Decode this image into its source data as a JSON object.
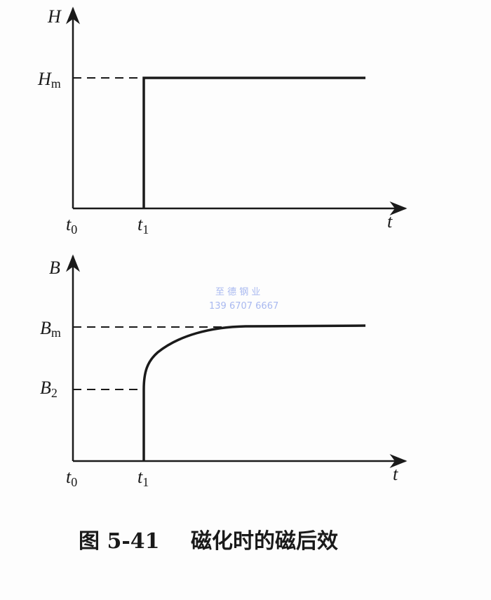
{
  "top_plot": {
    "y_label": "H",
    "level_label": {
      "main": "H",
      "sub": "m"
    },
    "x_label": "t",
    "ticks": [
      {
        "main": "t",
        "sub": "0"
      },
      {
        "main": "t",
        "sub": "1"
      }
    ]
  },
  "bottom_plot": {
    "y_label": "B",
    "level_labels": [
      {
        "main": "B",
        "sub": "m"
      },
      {
        "main": "B",
        "sub": "2"
      }
    ],
    "x_label": "t",
    "ticks": [
      {
        "main": "t",
        "sub": "0"
      },
      {
        "main": "t",
        "sub": "1"
      }
    ]
  },
  "watermark": {
    "line1": "至 德 钢 业",
    "line2": "139 6707 6667"
  },
  "caption": {
    "figure_number": "图 5-41",
    "title": "磁化时的磁后效"
  },
  "colors": {
    "ink": "#1a1a1a",
    "watermark": "#a9b9f0"
  }
}
